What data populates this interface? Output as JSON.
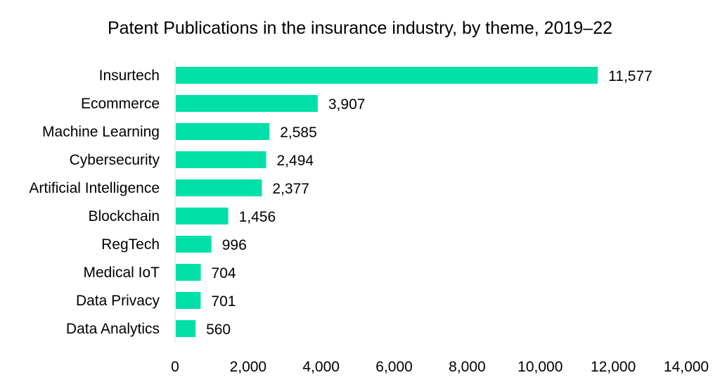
{
  "chart_data": {
    "type": "bar",
    "orientation": "horizontal",
    "title": "Patent Publications in the insurance industry, by theme, 2019–22",
    "xlabel": "",
    "ylabel": "",
    "categories": [
      "Insurtech",
      "Ecommerce",
      "Machine Learning",
      "Cybersecurity",
      "Artificial Intelligence",
      "Blockchain",
      "RegTech",
      "Medical IoT",
      "Data Privacy",
      "Data Analytics"
    ],
    "values": [
      11577,
      3907,
      2585,
      2494,
      2377,
      1456,
      996,
      704,
      701,
      560
    ],
    "value_labels": [
      "11,577",
      "3,907",
      "2,585",
      "2,494",
      "2,377",
      "1,456",
      "996",
      "704",
      "701",
      "560"
    ],
    "xlim": [
      0,
      14000
    ],
    "xticks": [
      0,
      2000,
      4000,
      6000,
      8000,
      10000,
      12000,
      14000
    ],
    "xtick_labels": [
      "0",
      "2,000",
      "4,000",
      "6,000",
      "8,000",
      "10,000",
      "12,000",
      "14,000"
    ],
    "grid": false,
    "legend": "none",
    "bar_color": "#00e0a8",
    "axis_color": "#d9d9d9"
  }
}
